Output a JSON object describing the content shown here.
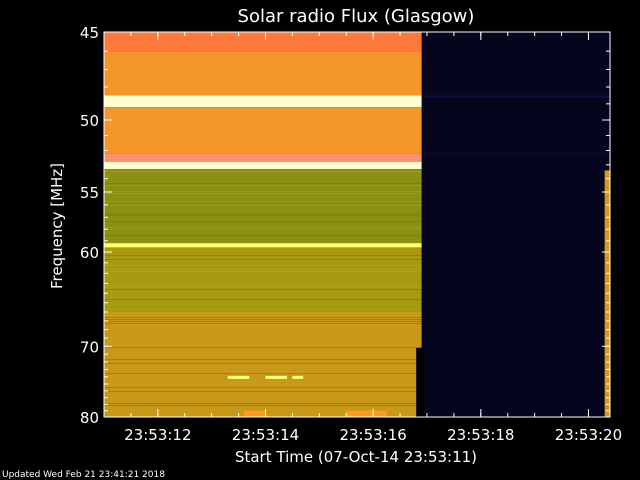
{
  "footer": "Updated Wed Feb 21 23:41:21 2018",
  "chart_data": {
    "type": "heatmap",
    "title": "Solar radio Flux (Glasgow)",
    "xlabel": "Start Time (07-Oct-14 23:53:11)",
    "ylabel": "Frequency [MHz]",
    "x_ticks": [
      "23:53:12",
      "23:53:14",
      "23:53:16",
      "23:53:18",
      "23:53:20"
    ],
    "x_tick_seconds": [
      12,
      14,
      16,
      18,
      20
    ],
    "y_ticks": [
      45,
      50,
      55,
      60,
      70,
      80
    ],
    "y_scale": "reciprocal",
    "xlim": [
      23.53111,
      23.53204
    ],
    "xlim_seconds": [
      11.0,
      20.4
    ],
    "ylim": [
      45,
      80
    ],
    "colormap": [
      "#0a0a28",
      "#6b6b00",
      "#8f9410",
      "#b59a10",
      "#d99a18",
      "#ff8a20",
      "#ff9a5a",
      "#ffff60",
      "#ffffe0"
    ],
    "data_coverage": {
      "main_block_seconds": [
        11.0,
        16.9
      ],
      "no_data_color": "#05051e",
      "late_strip_seconds": [
        20.3,
        20.4
      ]
    },
    "bands": [
      {
        "from": 45,
        "to": 46,
        "level": "orange-red"
      },
      {
        "from": 46,
        "to": 48.5,
        "level": "orange"
      },
      {
        "from": 48.5,
        "to": 49.2,
        "level": "yellow-white"
      },
      {
        "from": 49.2,
        "to": 52.2,
        "level": "orange"
      },
      {
        "from": 52.2,
        "to": 52.8,
        "level": "pink"
      },
      {
        "from": 52.8,
        "to": 53.3,
        "level": "yellow-white"
      },
      {
        "from": 53.3,
        "to": 59.2,
        "level": "olive"
      },
      {
        "from": 59.2,
        "to": 59.6,
        "level": "yellow"
      },
      {
        "from": 59.6,
        "to": 66,
        "level": "olive-gold"
      },
      {
        "from": 66,
        "to": 80,
        "level": "gold"
      }
    ]
  }
}
